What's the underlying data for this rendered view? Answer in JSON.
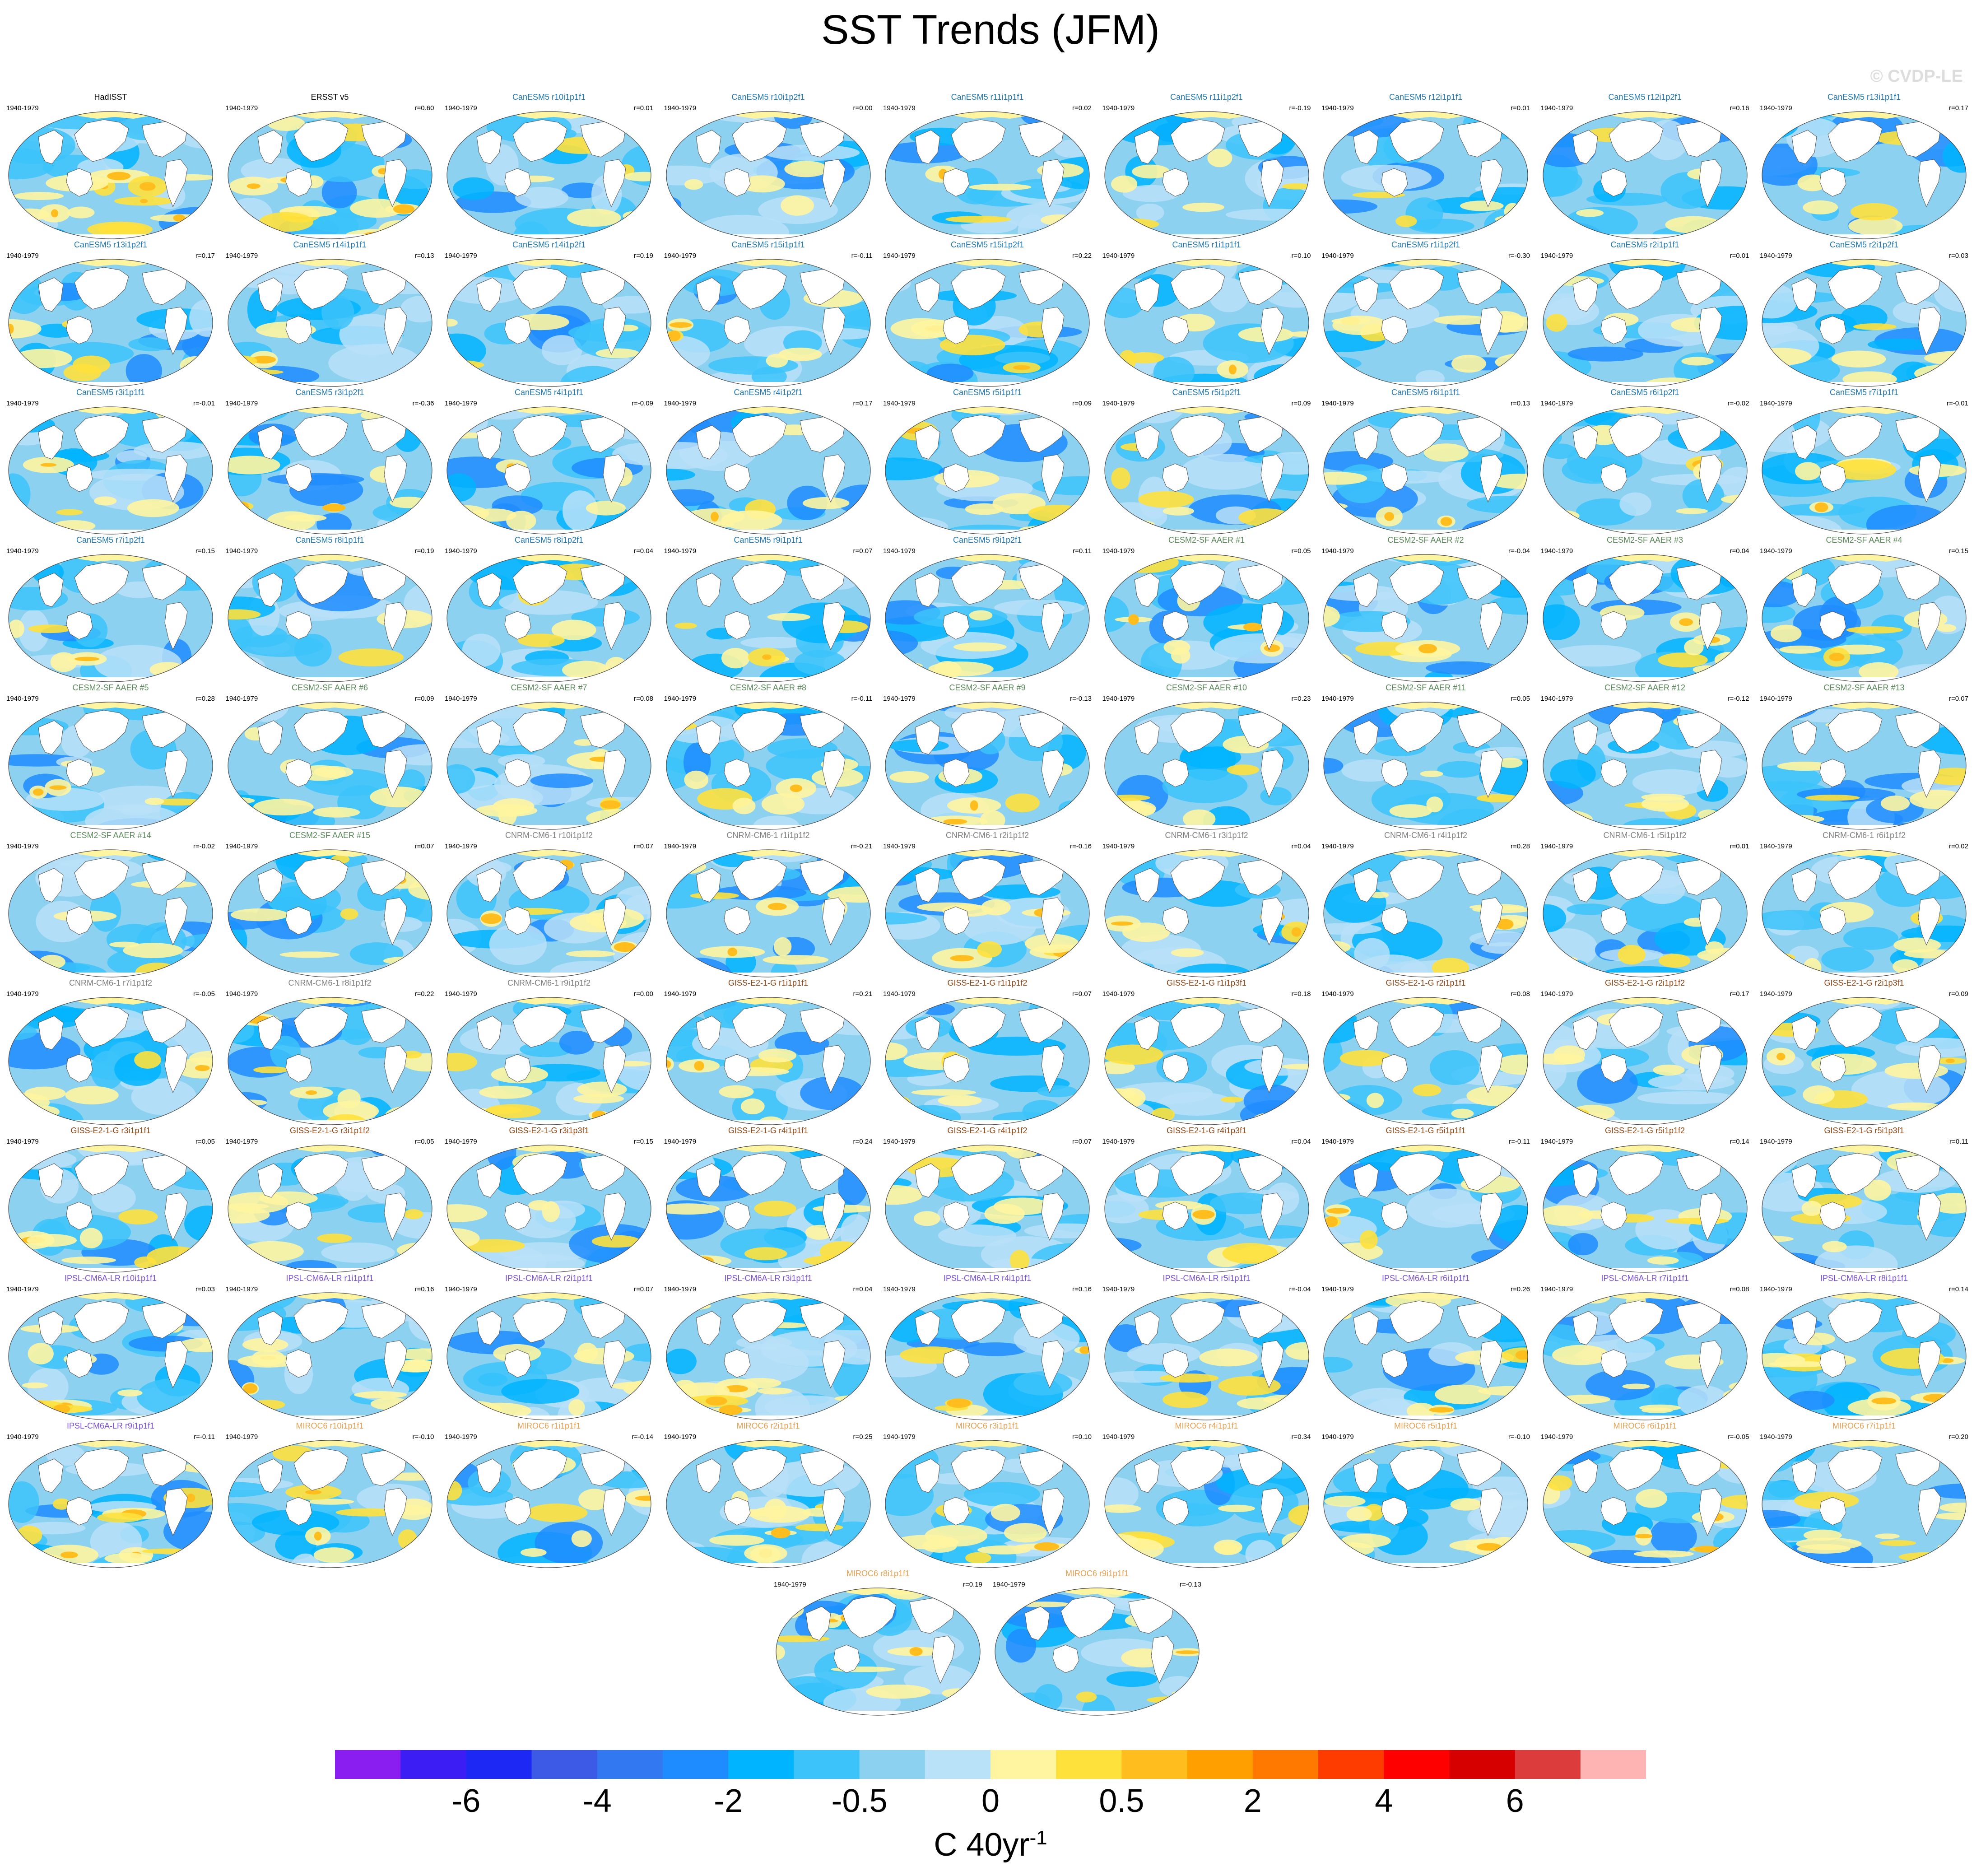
{
  "title": "SST Trends (JFM)",
  "copyright": "© CVDP-LE",
  "period": "1940-1979",
  "colorbar": {
    "colors": [
      "#8a1ef0",
      "#3c1ef5",
      "#1e28f5",
      "#3c5ae6",
      "#3278f0",
      "#1e8cff",
      "#00b4ff",
      "#3cc3fa",
      "#8cd2f0",
      "#b9e1f8",
      "#fff5a0",
      "#ffe13c",
      "#ffbe1e",
      "#ffa000",
      "#ff7800",
      "#ff3c00",
      "#ff0000",
      "#d70000",
      "#dc3c3c",
      "#ffb4b4"
    ],
    "labels": [
      {
        "text": "-6",
        "boundary": 2
      },
      {
        "text": "-4",
        "boundary": 4
      },
      {
        "text": "-2",
        "boundary": 6
      },
      {
        "text": "-0.5",
        "boundary": 8
      },
      {
        "text": "0",
        "boundary": 10
      },
      {
        "text": "0.5",
        "boundary": 12
      },
      {
        "text": "2",
        "boundary": 14
      },
      {
        "text": "4",
        "boundary": 16
      },
      {
        "text": "6",
        "boundary": 18
      }
    ],
    "units": "C 40yr",
    "units_exp": "-1"
  },
  "group_colors": {
    "obs": "#000000",
    "CanESM5": "#1f77b4",
    "CESM2-SF AAER": "#5a8a5a",
    "CNRM-CM6-1": "#7f7f7f",
    "GISS-E2-1-G": "#8b4513",
    "IPSL-CM6A-LR": "#7b4fd6",
    "MIROC6": "#e6a050"
  },
  "panels": [
    {
      "name": "HadISST",
      "group": "obs",
      "r": "",
      "warm": 0.55
    },
    {
      "name": "ERSST v5",
      "group": "obs",
      "r": "r=0.60",
      "warm": 0.5
    },
    {
      "name": "CanESM5 r10i1p1f1",
      "group": "CanESM5",
      "r": "r=0.01",
      "warm": 0.12
    },
    {
      "name": "CanESM5 r10i1p2f1",
      "group": "CanESM5",
      "r": "r=0.00",
      "warm": 0.1
    },
    {
      "name": "CanESM5 r11i1p1f1",
      "group": "CanESM5",
      "r": "r=0.02",
      "warm": 0.15
    },
    {
      "name": "CanESM5 r11i1p2f1",
      "group": "CanESM5",
      "r": "r=-0.19",
      "warm": 0.15
    },
    {
      "name": "CanESM5 r12i1p1f1",
      "group": "CanESM5",
      "r": "r=0.01",
      "warm": 0.14
    },
    {
      "name": "CanESM5 r12i1p2f1",
      "group": "CanESM5",
      "r": "r=0.16",
      "warm": 0.12
    },
    {
      "name": "CanESM5 r13i1p1f1",
      "group": "CanESM5",
      "r": "r=0.17",
      "warm": 0.12
    },
    {
      "name": "CanESM5 r13i1p2f1",
      "group": "CanESM5",
      "r": "r=0.17",
      "warm": 0.12
    },
    {
      "name": "CanESM5 r14i1p1f1",
      "group": "CanESM5",
      "r": "r=0.13",
      "warm": 0.15
    },
    {
      "name": "CanESM5 r14i1p2f1",
      "group": "CanESM5",
      "r": "r=0.19",
      "warm": 0.15
    },
    {
      "name": "CanESM5 r15i1p1f1",
      "group": "CanESM5",
      "r": "r=-0.11",
      "warm": 0.2
    },
    {
      "name": "CanESM5 r15i1p2f1",
      "group": "CanESM5",
      "r": "r=0.22",
      "warm": 0.18
    },
    {
      "name": "CanESM5 r1i1p1f1",
      "group": "CanESM5",
      "r": "r=0.10",
      "warm": 0.15
    },
    {
      "name": "CanESM5 r1i1p2f1",
      "group": "CanESM5",
      "r": "r=-0.30",
      "warm": 0.25
    },
    {
      "name": "CanESM5 r2i1p1f1",
      "group": "CanESM5",
      "r": "r=0.01",
      "warm": 0.12
    },
    {
      "name": "CanESM5 r2i1p2f1",
      "group": "CanESM5",
      "r": "r=0.03",
      "warm": 0.12
    },
    {
      "name": "CanESM5 r3i1p1f1",
      "group": "CanESM5",
      "r": "r=-0.01",
      "warm": 0.15
    },
    {
      "name": "CanESM5 r3i1p2f1",
      "group": "CanESM5",
      "r": "r=-0.36",
      "warm": 0.25
    },
    {
      "name": "CanESM5 r4i1p1f1",
      "group": "CanESM5",
      "r": "r=-0.09",
      "warm": 0.2
    },
    {
      "name": "CanESM5 r4i1p2f1",
      "group": "CanESM5",
      "r": "r=0.17",
      "warm": 0.18
    },
    {
      "name": "CanESM5 r5i1p1f1",
      "group": "CanESM5",
      "r": "r=0.09",
      "warm": 0.15
    },
    {
      "name": "CanESM5 r5i1p2f1",
      "group": "CanESM5",
      "r": "r=0.09",
      "warm": 0.12
    },
    {
      "name": "CanESM5 r6i1p1f1",
      "group": "CanESM5",
      "r": "r=0.13",
      "warm": 0.12
    },
    {
      "name": "CanESM5 r6i1p2f1",
      "group": "CanESM5",
      "r": "r=-0.02",
      "warm": 0.15
    },
    {
      "name": "CanESM5 r7i1p1f1",
      "group": "CanESM5",
      "r": "r=-0.01",
      "warm": 0.12
    },
    {
      "name": "CanESM5 r7i1p2f1",
      "group": "CanESM5",
      "r": "r=0.15",
      "warm": 0.1
    },
    {
      "name": "CanESM5 r8i1p1f1",
      "group": "CanESM5",
      "r": "r=0.19",
      "warm": 0.05
    },
    {
      "name": "CanESM5 r8i1p2f1",
      "group": "CanESM5",
      "r": "r=0.04",
      "warm": 0.15
    },
    {
      "name": "CanESM5 r9i1p1f1",
      "group": "CanESM5",
      "r": "r=0.07",
      "warm": 0.15
    },
    {
      "name": "CanESM5 r9i1p2f1",
      "group": "CanESM5",
      "r": "r=0.11",
      "warm": 0.15
    },
    {
      "name": "CESM2-SF AAER #1",
      "group": "CESM2-SF AAER",
      "r": "r=0.05",
      "warm": 0.2
    },
    {
      "name": "CESM2-SF AAER #2",
      "group": "CESM2-SF AAER",
      "r": "r=-0.04",
      "warm": 0.2
    },
    {
      "name": "CESM2-SF AAER #3",
      "group": "CESM2-SF AAER",
      "r": "r=0.04",
      "warm": 0.2
    },
    {
      "name": "CESM2-SF AAER #4",
      "group": "CESM2-SF AAER",
      "r": "r=0.15",
      "warm": 0.25
    },
    {
      "name": "CESM2-SF AAER #5",
      "group": "CESM2-SF AAER",
      "r": "r=0.28",
      "warm": 0.2
    },
    {
      "name": "CESM2-SF AAER #6",
      "group": "CESM2-SF AAER",
      "r": "r=0.09",
      "warm": 0.22
    },
    {
      "name": "CESM2-SF AAER #7",
      "group": "CESM2-SF AAER",
      "r": "r=0.08",
      "warm": 0.3
    },
    {
      "name": "CESM2-SF AAER #8",
      "group": "CESM2-SF AAER",
      "r": "r=-0.11",
      "warm": 0.25
    },
    {
      "name": "CESM2-SF AAER #9",
      "group": "CESM2-SF AAER",
      "r": "r=-0.13",
      "warm": 0.25
    },
    {
      "name": "CESM2-SF AAER #10",
      "group": "CESM2-SF AAER",
      "r": "r=0.23",
      "warm": 0.2
    },
    {
      "name": "CESM2-SF AAER #11",
      "group": "CESM2-SF AAER",
      "r": "r=0.05",
      "warm": 0.2
    },
    {
      "name": "CESM2-SF AAER #12",
      "group": "CESM2-SF AAER",
      "r": "r=-0.12",
      "warm": 0.2
    },
    {
      "name": "CESM2-SF AAER #13",
      "group": "CESM2-SF AAER",
      "r": "r=0.07",
      "warm": 0.18
    },
    {
      "name": "CESM2-SF AAER #14",
      "group": "CESM2-SF AAER",
      "r": "r=-0.02",
      "warm": 0.2
    },
    {
      "name": "CESM2-SF AAER #15",
      "group": "CESM2-SF AAER",
      "r": "r=0.07",
      "warm": 0.2
    },
    {
      "name": "CNRM-CM6-1 r10i1p1f2",
      "group": "CNRM-CM6-1",
      "r": "r=0.07",
      "warm": 0.25
    },
    {
      "name": "CNRM-CM6-1 r1i1p1f2",
      "group": "CNRM-CM6-1",
      "r": "r=-0.21",
      "warm": 0.3
    },
    {
      "name": "CNRM-CM6-1 r2i1p1f2",
      "group": "CNRM-CM6-1",
      "r": "r=-0.16",
      "warm": 0.3
    },
    {
      "name": "CNRM-CM6-1 r3i1p1f2",
      "group": "CNRM-CM6-1",
      "r": "r=0.04",
      "warm": 0.2
    },
    {
      "name": "CNRM-CM6-1 r4i1p1f2",
      "group": "CNRM-CM6-1",
      "r": "r=0.28",
      "warm": 0.2
    },
    {
      "name": "CNRM-CM6-1 r5i1p1f2",
      "group": "CNRM-CM6-1",
      "r": "r=0.01",
      "warm": 0.2
    },
    {
      "name": "CNRM-CM6-1 r6i1p1f2",
      "group": "CNRM-CM6-1",
      "r": "r=0.02",
      "warm": 0.22
    },
    {
      "name": "CNRM-CM6-1 r7i1p1f2",
      "group": "CNRM-CM6-1",
      "r": "r=-0.05",
      "warm": 0.18
    },
    {
      "name": "CNRM-CM6-1 r8i1p1f2",
      "group": "CNRM-CM6-1",
      "r": "r=0.22",
      "warm": 0.3
    },
    {
      "name": "CNRM-CM6-1 r9i1p1f2",
      "group": "CNRM-CM6-1",
      "r": "r=0.00",
      "warm": 0.3
    },
    {
      "name": "GISS-E2-1-G r1i1p1f1",
      "group": "GISS-E2-1-G",
      "r": "r=0.21",
      "warm": 0.25
    },
    {
      "name": "GISS-E2-1-G r1i1p1f2",
      "group": "GISS-E2-1-G",
      "r": "r=0.07",
      "warm": 0.2
    },
    {
      "name": "GISS-E2-1-G r1i1p3f1",
      "group": "GISS-E2-1-G",
      "r": "r=0.18",
      "warm": 0.3
    },
    {
      "name": "GISS-E2-1-G r2i1p1f1",
      "group": "GISS-E2-1-G",
      "r": "r=0.08",
      "warm": 0.18
    },
    {
      "name": "GISS-E2-1-G r2i1p1f2",
      "group": "GISS-E2-1-G",
      "r": "r=0.17",
      "warm": 0.2
    },
    {
      "name": "GISS-E2-1-G r2i1p3f1",
      "group": "GISS-E2-1-G",
      "r": "r=0.09",
      "warm": 0.25
    },
    {
      "name": "GISS-E2-1-G r3i1p1f1",
      "group": "GISS-E2-1-G",
      "r": "r=0.05",
      "warm": 0.25
    },
    {
      "name": "GISS-E2-1-G r3i1p1f2",
      "group": "GISS-E2-1-G",
      "r": "r=0.05",
      "warm": 0.25
    },
    {
      "name": "GISS-E2-1-G r3i1p3f1",
      "group": "GISS-E2-1-G",
      "r": "r=0.15",
      "warm": 0.3
    },
    {
      "name": "GISS-E2-1-G r4i1p1f1",
      "group": "GISS-E2-1-G",
      "r": "r=0.24",
      "warm": 0.25
    },
    {
      "name": "GISS-E2-1-G r4i1p1f2",
      "group": "GISS-E2-1-G",
      "r": "r=0.07",
      "warm": 0.2
    },
    {
      "name": "GISS-E2-1-G r4i1p3f1",
      "group": "GISS-E2-1-G",
      "r": "r=0.04",
      "warm": 0.22
    },
    {
      "name": "GISS-E2-1-G r5i1p1f1",
      "group": "GISS-E2-1-G",
      "r": "r=-0.11",
      "warm": 0.2
    },
    {
      "name": "GISS-E2-1-G r5i1p1f2",
      "group": "GISS-E2-1-G",
      "r": "r=0.14",
      "warm": 0.15
    },
    {
      "name": "GISS-E2-1-G r5i1p3f1",
      "group": "GISS-E2-1-G",
      "r": "r=0.11",
      "warm": 0.3
    },
    {
      "name": "IPSL-CM6A-LR r10i1p1f1",
      "group": "IPSL-CM6A-LR",
      "r": "r=0.03",
      "warm": 0.3
    },
    {
      "name": "IPSL-CM6A-LR r1i1p1f1",
      "group": "IPSL-CM6A-LR",
      "r": "r=0.16",
      "warm": 0.3
    },
    {
      "name": "IPSL-CM6A-LR r2i1p1f1",
      "group": "IPSL-CM6A-LR",
      "r": "r=0.07",
      "warm": 0.22
    },
    {
      "name": "IPSL-CM6A-LR r3i1p1f1",
      "group": "IPSL-CM6A-LR",
      "r": "r=0.04",
      "warm": 0.3
    },
    {
      "name": "IPSL-CM6A-LR r4i1p1f1",
      "group": "IPSL-CM6A-LR",
      "r": "r=0.16",
      "warm": 0.2
    },
    {
      "name": "IPSL-CM6A-LR r5i1p1f1",
      "group": "IPSL-CM6A-LR",
      "r": "r=-0.04",
      "warm": 0.22
    },
    {
      "name": "IPSL-CM6A-LR r6i1p1f1",
      "group": "IPSL-CM6A-LR",
      "r": "r=0.26",
      "warm": 0.25
    },
    {
      "name": "IPSL-CM6A-LR r7i1p1f1",
      "group": "IPSL-CM6A-LR",
      "r": "r=0.08",
      "warm": 0.35
    },
    {
      "name": "IPSL-CM6A-LR r8i1p1f1",
      "group": "IPSL-CM6A-LR",
      "r": "r=0.14",
      "warm": 0.4
    },
    {
      "name": "IPSL-CM6A-LR r9i1p1f1",
      "group": "IPSL-CM6A-LR",
      "r": "r=-0.11",
      "warm": 0.35
    },
    {
      "name": "MIROC6 r10i1p1f1",
      "group": "MIROC6",
      "r": "r=-0.10",
      "warm": 0.3
    },
    {
      "name": "MIROC6 r1i1p1f1",
      "group": "MIROC6",
      "r": "r=-0.14",
      "warm": 0.2
    },
    {
      "name": "MIROC6 r2i1p1f1",
      "group": "MIROC6",
      "r": "r=0.25",
      "warm": 0.35
    },
    {
      "name": "MIROC6 r3i1p1f1",
      "group": "MIROC6",
      "r": "r=0.10",
      "warm": 0.3
    },
    {
      "name": "MIROC6 r4i1p1f1",
      "group": "MIROC6",
      "r": "r=0.34",
      "warm": 0.3
    },
    {
      "name": "MIROC6 r5i1p1f1",
      "group": "MIROC6",
      "r": "r=-0.10",
      "warm": 0.3
    },
    {
      "name": "MIROC6 r6i1p1f1",
      "group": "MIROC6",
      "r": "r=-0.05",
      "warm": 0.3
    },
    {
      "name": "MIROC6 r7i1p1f1",
      "group": "MIROC6",
      "r": "r=0.20",
      "warm": 0.3
    },
    {
      "name": "MIROC6 r8i1p1f1",
      "group": "MIROC6",
      "r": "r=0.19",
      "warm": 0.3
    },
    {
      "name": "MIROC6 r9i1p1f1",
      "group": "MIROC6",
      "r": "r=-0.13",
      "warm": 0.28
    }
  ]
}
